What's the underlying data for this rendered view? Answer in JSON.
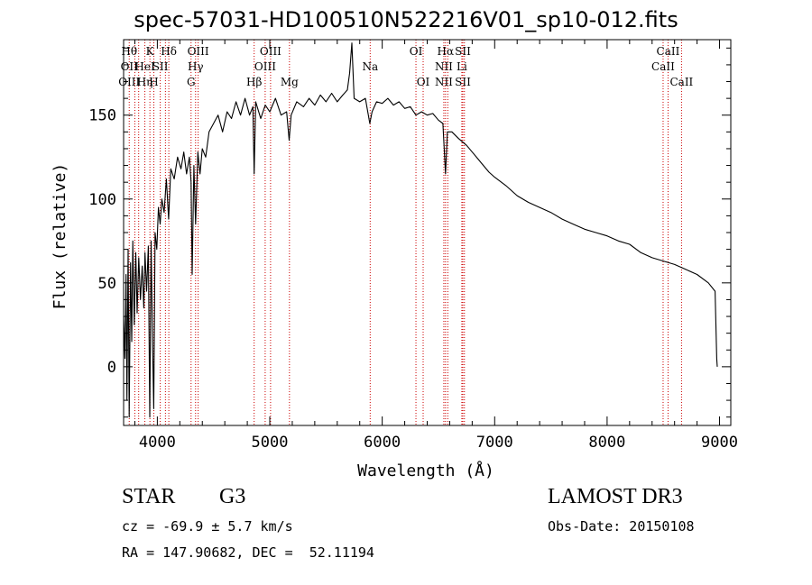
{
  "chart_data": {
    "type": "line",
    "title": "spec-57031-HD100510N522216V01_sp10-012.fits",
    "xlabel": "Wavelength (Å)",
    "ylabel": "Flux (relative)",
    "xlim": [
      3700,
      9100
    ],
    "ylim": [
      -35,
      195
    ],
    "xticks": [
      4000,
      5000,
      6000,
      7000,
      8000,
      9000
    ],
    "yticks": [
      0,
      50,
      100,
      150
    ],
    "grid": false,
    "line_color": "#000000",
    "marker_color": "#cc0000",
    "series": [
      {
        "values": [
          [
            3700,
            30
          ],
          [
            3712,
            5
          ],
          [
            3722,
            55
          ],
          [
            3730,
            -20
          ],
          [
            3740,
            70
          ],
          [
            3750,
            -30
          ],
          [
            3762,
            62
          ],
          [
            3772,
            15
          ],
          [
            3782,
            75
          ],
          [
            3795,
            25
          ],
          [
            3808,
            68
          ],
          [
            3820,
            32
          ],
          [
            3835,
            65
          ],
          [
            3850,
            40
          ],
          [
            3865,
            60
          ],
          [
            3880,
            35
          ],
          [
            3890,
            68
          ],
          [
            3905,
            45
          ],
          [
            3920,
            72
          ],
          [
            3933,
            -30
          ],
          [
            3945,
            75
          ],
          [
            3958,
            10
          ],
          [
            3968,
            -25
          ],
          [
            3980,
            80
          ],
          [
            3995,
            70
          ],
          [
            4010,
            95
          ],
          [
            4025,
            85
          ],
          [
            4040,
            100
          ],
          [
            4060,
            92
          ],
          [
            4080,
            112
          ],
          [
            4100,
            88
          ],
          [
            4120,
            118
          ],
          [
            4150,
            112
          ],
          [
            4180,
            125
          ],
          [
            4210,
            118
          ],
          [
            4235,
            128
          ],
          [
            4260,
            115
          ],
          [
            4285,
            125
          ],
          [
            4300,
            110
          ],
          [
            4310,
            55
          ],
          [
            4325,
            120
          ],
          [
            4340,
            85
          ],
          [
            4360,
            128
          ],
          [
            4380,
            115
          ],
          [
            4400,
            130
          ],
          [
            4430,
            125
          ],
          [
            4460,
            140
          ],
          [
            4500,
            145
          ],
          [
            4540,
            150
          ],
          [
            4580,
            140
          ],
          [
            4620,
            152
          ],
          [
            4660,
            148
          ],
          [
            4700,
            158
          ],
          [
            4740,
            150
          ],
          [
            4780,
            160
          ],
          [
            4820,
            150
          ],
          [
            4850,
            155
          ],
          [
            4861,
            115
          ],
          [
            4875,
            158
          ],
          [
            4920,
            148
          ],
          [
            4960,
            156
          ],
          [
            5000,
            152
          ],
          [
            5050,
            160
          ],
          [
            5100,
            150
          ],
          [
            5150,
            152
          ],
          [
            5172,
            135
          ],
          [
            5190,
            150
          ],
          [
            5240,
            158
          ],
          [
            5300,
            155
          ],
          [
            5350,
            160
          ],
          [
            5400,
            156
          ],
          [
            5450,
            162
          ],
          [
            5500,
            158
          ],
          [
            5550,
            163
          ],
          [
            5600,
            158
          ],
          [
            5650,
            162
          ],
          [
            5690,
            165
          ],
          [
            5710,
            175
          ],
          [
            5730,
            193
          ],
          [
            5750,
            160
          ],
          [
            5800,
            158
          ],
          [
            5850,
            160
          ],
          [
            5890,
            145
          ],
          [
            5910,
            152
          ],
          [
            5950,
            158
          ],
          [
            6000,
            157
          ],
          [
            6050,
            160
          ],
          [
            6100,
            156
          ],
          [
            6150,
            158
          ],
          [
            6200,
            154
          ],
          [
            6250,
            155
          ],
          [
            6300,
            150
          ],
          [
            6350,
            152
          ],
          [
            6400,
            150
          ],
          [
            6450,
            151
          ],
          [
            6500,
            147
          ],
          [
            6540,
            145
          ],
          [
            6563,
            115
          ],
          [
            6580,
            140
          ],
          [
            6620,
            140
          ],
          [
            6680,
            136
          ],
          [
            6750,
            132
          ],
          [
            6800,
            128
          ],
          [
            6850,
            124
          ],
          [
            6900,
            120
          ],
          [
            6950,
            116
          ],
          [
            7000,
            113
          ],
          [
            7100,
            108
          ],
          [
            7200,
            102
          ],
          [
            7300,
            98
          ],
          [
            7400,
            95
          ],
          [
            7500,
            92
          ],
          [
            7600,
            88
          ],
          [
            7700,
            85
          ],
          [
            7800,
            82
          ],
          [
            7900,
            80
          ],
          [
            8000,
            78
          ],
          [
            8100,
            75
          ],
          [
            8200,
            73
          ],
          [
            8300,
            68
          ],
          [
            8400,
            65
          ],
          [
            8500,
            63
          ],
          [
            8600,
            61
          ],
          [
            8700,
            58
          ],
          [
            8800,
            55
          ],
          [
            8900,
            50
          ],
          [
            8960,
            45
          ],
          [
            8975,
            5
          ],
          [
            8980,
            0
          ]
        ]
      }
    ],
    "lines": [
      {
        "x": 3750,
        "labels": [
          "Hθ",
          "OII",
          "OIII"
        ]
      },
      {
        "x": 3800,
        "labels": [
          "",
          "",
          ""
        ]
      },
      {
        "x": 3834,
        "labels": [
          "",
          "",
          ""
        ]
      },
      {
        "x": 3889,
        "labels": [
          "",
          "HeI",
          "Hη"
        ]
      },
      {
        "x": 3934,
        "labels": [
          "K",
          "",
          ""
        ]
      },
      {
        "x": 3969,
        "labels": [
          "",
          "",
          "H"
        ]
      },
      {
        "x": 4026,
        "labels": [
          "",
          "SII",
          ""
        ]
      },
      {
        "x": 4072,
        "labels": [
          "",
          "",
          ""
        ]
      },
      {
        "x": 4102,
        "labels": [
          "Hδ",
          "",
          ""
        ]
      },
      {
        "x": 4300,
        "labels": [
          "",
          "",
          "G"
        ]
      },
      {
        "x": 4340,
        "labels": [
          "",
          "Hγ",
          ""
        ]
      },
      {
        "x": 4363,
        "labels": [
          "OIII",
          "",
          ""
        ]
      },
      {
        "x": 4861,
        "labels": [
          "",
          "",
          "Hβ"
        ]
      },
      {
        "x": 4959,
        "labels": [
          "",
          "OIII",
          ""
        ]
      },
      {
        "x": 5007,
        "labels": [
          "OIII",
          "",
          ""
        ]
      },
      {
        "x": 5175,
        "labels": [
          "",
          "",
          "Mg"
        ]
      },
      {
        "x": 5893,
        "labels": [
          "",
          "Na",
          ""
        ]
      },
      {
        "x": 6300,
        "labels": [
          "OI",
          "",
          ""
        ]
      },
      {
        "x": 6364,
        "labels": [
          "",
          "",
          "OI"
        ]
      },
      {
        "x": 6548,
        "labels": [
          "",
          "NII",
          "NII"
        ]
      },
      {
        "x": 6563,
        "labels": [
          "Hα",
          "",
          ""
        ]
      },
      {
        "x": 6583,
        "labels": [
          "",
          "",
          ""
        ]
      },
      {
        "x": 6708,
        "labels": [
          "",
          "Li",
          ""
        ]
      },
      {
        "x": 6717,
        "labels": [
          "SII",
          "",
          "SII"
        ]
      },
      {
        "x": 6731,
        "labels": [
          "",
          "",
          ""
        ]
      },
      {
        "x": 8498,
        "labels": [
          "",
          "CaII",
          ""
        ]
      },
      {
        "x": 8542,
        "labels": [
          "CaII",
          "",
          ""
        ]
      },
      {
        "x": 8662,
        "labels": [
          "",
          "",
          "CaII"
        ]
      }
    ]
  },
  "info": {
    "object_class": "STAR",
    "subclass": "G3",
    "survey": "LAMOST DR3",
    "cz": "cz = -69.9 ± 5.7 km/s",
    "obs_date": "Obs-Date: 20150108",
    "coords": "RA = 147.90682, DEC =  52.11194"
  }
}
